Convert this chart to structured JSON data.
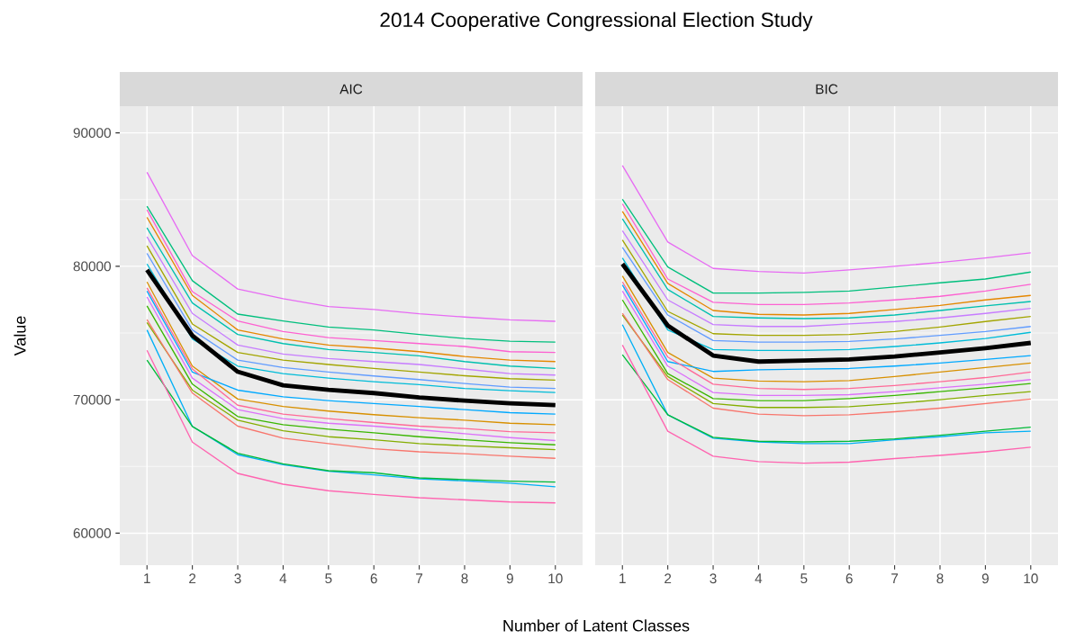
{
  "chart_data": [
    {
      "type": "line",
      "title": "2014 Cooperative Congressional Election Study",
      "subtitle": "AIC",
      "xlabel": "Number of Latent Classes",
      "ylabel": "Value",
      "x": [
        1,
        2,
        3,
        4,
        5,
        6,
        7,
        8,
        9,
        10
      ],
      "xlim": [
        0.4,
        10.6
      ],
      "xticks": [
        1,
        2,
        3,
        4,
        5,
        6,
        7,
        8,
        9,
        10
      ],
      "ylim": [
        57600,
        92000
      ],
      "yticks": [
        60000,
        70000,
        80000,
        90000
      ],
      "grid": true,
      "series": [
        {
          "color": "#E76BF3",
          "values": [
            87050,
            80800,
            78300,
            77570,
            76980,
            76760,
            76440,
            76200,
            75990,
            75880
          ]
        },
        {
          "color": "#00BF7D",
          "values": [
            84500,
            78920,
            76420,
            75900,
            75450,
            75230,
            74890,
            74590,
            74390,
            74320
          ]
        },
        {
          "color": "#FD61D1",
          "values": [
            84230,
            78100,
            75900,
            75110,
            74660,
            74440,
            74210,
            73990,
            73600,
            73540
          ]
        },
        {
          "color": "#E58700",
          "values": [
            83670,
            77820,
            75230,
            74550,
            74100,
            73870,
            73600,
            73240,
            72970,
            72860
          ]
        },
        {
          "color": "#00C0AF",
          "values": [
            82880,
            77250,
            74890,
            74210,
            73760,
            73540,
            73290,
            72860,
            72520,
            72340
          ]
        },
        {
          "color": "#C77CFF",
          "values": [
            82210,
            76470,
            74100,
            73430,
            73090,
            72860,
            72640,
            72300,
            71960,
            71850
          ]
        },
        {
          "color": "#A3A500",
          "values": [
            81530,
            75680,
            73540,
            72970,
            72640,
            72340,
            72070,
            71800,
            71580,
            71470
          ]
        },
        {
          "color": "#619CFF",
          "values": [
            80970,
            75230,
            72970,
            72410,
            72070,
            71780,
            71510,
            71220,
            70950,
            70840
          ]
        },
        {
          "color": "#00BCD8",
          "values": [
            80180,
            74550,
            72520,
            71960,
            71620,
            71350,
            71130,
            70840,
            70680,
            70540
          ]
        },
        {
          "color": "#D89000",
          "values": [
            78830,
            72520,
            70050,
            69490,
            69150,
            68880,
            68650,
            68470,
            68240,
            68130
          ]
        },
        {
          "color": "#00A9FF",
          "values": [
            78150,
            72070,
            70720,
            70220,
            69930,
            69710,
            69490,
            69260,
            69030,
            68920
          ]
        },
        {
          "color": "#FF6A98",
          "values": [
            78380,
            72300,
            69590,
            68920,
            68580,
            68290,
            68020,
            67840,
            67610,
            67520
          ]
        },
        {
          "color": "#DC71FA",
          "values": [
            77700,
            71620,
            69260,
            68580,
            68240,
            68020,
            67750,
            67450,
            67160,
            66940
          ]
        },
        {
          "color": "#39B600",
          "values": [
            77030,
            71170,
            68740,
            68130,
            67790,
            67520,
            67230,
            67000,
            66780,
            66620
          ]
        },
        {
          "color": "#85AD00",
          "values": [
            75790,
            70720,
            68470,
            67680,
            67230,
            67000,
            66710,
            66550,
            66400,
            66260
          ]
        },
        {
          "color": "#F8766D",
          "values": [
            76010,
            70500,
            68020,
            67120,
            66710,
            66330,
            66100,
            65950,
            65770,
            65610
          ]
        },
        {
          "color": "#00B0F6",
          "values": [
            75230,
            68000,
            65880,
            65130,
            64640,
            64370,
            64070,
            63920,
            63740,
            63470
          ]
        },
        {
          "color": "#00BA38",
          "values": [
            72970,
            68000,
            65990,
            65200,
            64680,
            64530,
            64140,
            64010,
            63900,
            63830
          ]
        },
        {
          "color": "#FF64B0",
          "values": [
            73700,
            66820,
            64480,
            63670,
            63180,
            62900,
            62660,
            62500,
            62340,
            62270
          ]
        },
        {
          "color": "#000000",
          "values": [
            79730,
            74800,
            72100,
            71080,
            70740,
            70500,
            70170,
            69930,
            69730,
            69590
          ]
        }
      ]
    },
    {
      "type": "line",
      "subtitle": "BIC",
      "x": [
        1,
        2,
        3,
        4,
        5,
        6,
        7,
        8,
        9,
        10
      ],
      "xlim": [
        0.4,
        10.6
      ],
      "xticks": [
        1,
        2,
        3,
        4,
        5,
        6,
        7,
        8,
        9,
        10
      ],
      "ylim": [
        57600,
        92000
      ],
      "yticks": [
        60000,
        70000,
        80000,
        90000
      ],
      "grid": true,
      "tick_labels": "x",
      "series": [
        {
          "color": "#E76BF3",
          "values": [
            87550,
            81820,
            79840,
            79610,
            79500,
            79730,
            80000,
            80290,
            80630,
            81010
          ]
        },
        {
          "color": "#00BF7D",
          "values": [
            85020,
            79950,
            77990,
            77990,
            78040,
            78150,
            78450,
            78760,
            79050,
            79570
          ]
        },
        {
          "color": "#FD61D1",
          "values": [
            84680,
            79050,
            77300,
            77140,
            77140,
            77250,
            77480,
            77750,
            78150,
            78650
          ]
        },
        {
          "color": "#E58700",
          "values": [
            84120,
            78720,
            76690,
            76400,
            76350,
            76470,
            76760,
            77070,
            77480,
            77820
          ]
        },
        {
          "color": "#00C0AF",
          "values": [
            83560,
            78260,
            76240,
            76130,
            76080,
            76130,
            76350,
            76690,
            77030,
            77360
          ]
        },
        {
          "color": "#C77CFF",
          "values": [
            82660,
            77480,
            75630,
            75490,
            75490,
            75680,
            75860,
            76130,
            76470,
            76850
          ]
        },
        {
          "color": "#A3A500",
          "values": [
            81980,
            76620,
            74950,
            74820,
            74820,
            74890,
            75110,
            75450,
            75860,
            76240
          ]
        },
        {
          "color": "#619CFF",
          "values": [
            81420,
            76350,
            74440,
            74320,
            74320,
            74370,
            74550,
            74820,
            75110,
            75490
          ]
        },
        {
          "color": "#00BCD8",
          "values": [
            80630,
            75230,
            73760,
            73690,
            73690,
            73760,
            73990,
            74260,
            74590,
            75050
          ]
        },
        {
          "color": "#D89000",
          "values": [
            79280,
            73540,
            71620,
            71400,
            71350,
            71440,
            71740,
            72070,
            72410,
            72750
          ]
        },
        {
          "color": "#00A9FF",
          "values": [
            78600,
            72860,
            72120,
            72250,
            72300,
            72340,
            72520,
            72750,
            73020,
            73310
          ]
        },
        {
          "color": "#FF6A98",
          "values": [
            78830,
            73200,
            71170,
            70840,
            70770,
            70840,
            71060,
            71350,
            71660,
            72070
          ]
        },
        {
          "color": "#DC71FA",
          "values": [
            78150,
            72520,
            70540,
            70320,
            70320,
            70380,
            70610,
            70900,
            71170,
            71510
          ]
        },
        {
          "color": "#39B600",
          "values": [
            77480,
            71960,
            70090,
            69930,
            69930,
            70090,
            70320,
            70610,
            70900,
            71220
          ]
        },
        {
          "color": "#85AD00",
          "values": [
            76350,
            71740,
            69710,
            69420,
            69420,
            69480,
            69710,
            70000,
            70320,
            70610
          ]
        },
        {
          "color": "#F8766D",
          "values": [
            76470,
            71510,
            69370,
            68920,
            68800,
            68870,
            69100,
            69370,
            69710,
            70050
          ]
        },
        {
          "color": "#00B0F6",
          "values": [
            75630,
            68870,
            67120,
            66840,
            66710,
            66710,
            67000,
            67230,
            67520,
            67640
          ]
        },
        {
          "color": "#00BA38",
          "values": [
            73380,
            68870,
            67180,
            66890,
            66840,
            66890,
            67070,
            67340,
            67640,
            67950
          ]
        },
        {
          "color": "#FF64B0",
          "values": [
            74100,
            67640,
            65770,
            65360,
            65250,
            65320,
            65590,
            65830,
            66100,
            66440
          ]
        },
        {
          "color": "#000000",
          "values": [
            80180,
            75560,
            73310,
            72860,
            72930,
            73020,
            73240,
            73540,
            73870,
            74260
          ]
        }
      ]
    }
  ]
}
